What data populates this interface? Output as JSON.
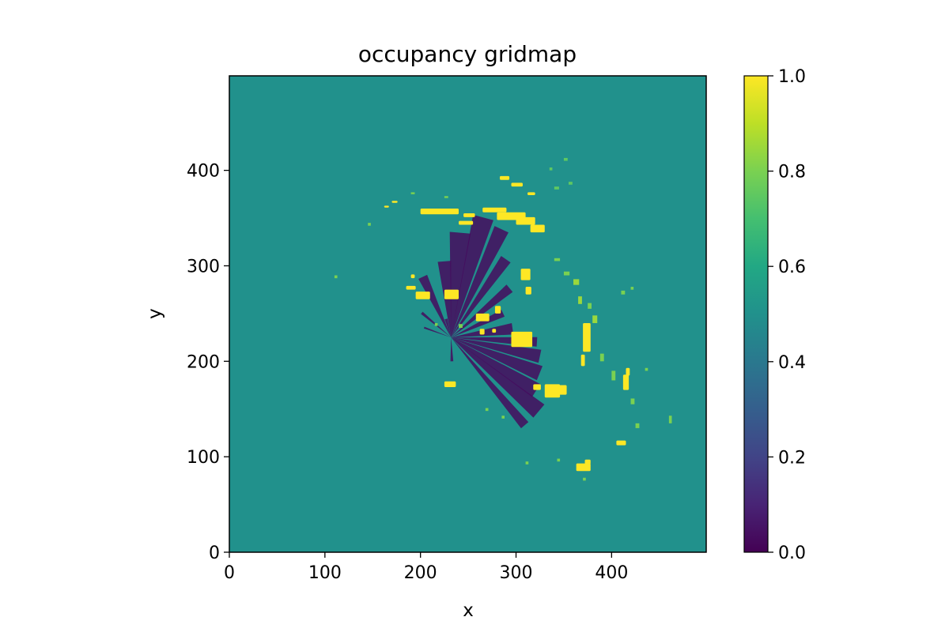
{
  "chart_data": {
    "type": "heatmap",
    "title": "occupancy gridmap",
    "xlabel": "x",
    "ylabel": "y",
    "xlim": [
      0,
      499
    ],
    "ylim": [
      0,
      499
    ],
    "x_ticks": [
      "0",
      "100",
      "200",
      "300",
      "400"
    ],
    "y_ticks": [
      "0",
      "100",
      "200",
      "300",
      "400"
    ],
    "colorbar": {
      "colormap": "viridis",
      "vmin": 0.0,
      "vmax": 1.0,
      "ticks": [
        "0.0",
        "0.2",
        "0.4",
        "0.6",
        "0.8",
        "1.0"
      ]
    },
    "background_value": 0.5,
    "sensor_origin": [
      232,
      225
    ],
    "free_space_rays": [
      {
        "angle_deg": 105,
        "length": 20,
        "width": 3
      },
      {
        "angle_deg": 115,
        "length": 70,
        "width": 10
      },
      {
        "angle_deg": 95,
        "length": 80,
        "width": 14
      },
      {
        "angle_deg": 85,
        "length": 110,
        "width": 22
      },
      {
        "angle_deg": 75,
        "length": 130,
        "width": 22
      },
      {
        "angle_deg": 65,
        "length": 125,
        "width": 16
      },
      {
        "angle_deg": 55,
        "length": 100,
        "width": 12
      },
      {
        "angle_deg": 40,
        "length": 80,
        "width": 10
      },
      {
        "angle_deg": 25,
        "length": 60,
        "width": 8
      },
      {
        "angle_deg": 8,
        "length": 65,
        "width": 12
      },
      {
        "angle_deg": -3,
        "length": 90,
        "width": 10
      },
      {
        "angle_deg": -12,
        "length": 95,
        "width": 14
      },
      {
        "angle_deg": -22,
        "length": 100,
        "width": 16
      },
      {
        "angle_deg": -32,
        "length": 105,
        "width": 16
      },
      {
        "angle_deg": -40,
        "length": 120,
        "width": 18
      },
      {
        "angle_deg": -50,
        "length": 120,
        "width": 10
      },
      {
        "angle_deg": -88,
        "length": 25,
        "width": 3
      },
      {
        "angle_deg": 140,
        "length": 40,
        "width": 3
      },
      {
        "angle_deg": 160,
        "length": 30,
        "width": 2
      }
    ],
    "occupied_cells": [
      {
        "x": 200,
        "y": 354,
        "w": 40,
        "h": 6
      },
      {
        "x": 245,
        "y": 351,
        "w": 12,
        "h": 4
      },
      {
        "x": 265,
        "y": 356,
        "w": 25,
        "h": 5
      },
      {
        "x": 280,
        "y": 348,
        "w": 30,
        "h": 8
      },
      {
        "x": 300,
        "y": 343,
        "w": 20,
        "h": 8
      },
      {
        "x": 315,
        "y": 335,
        "w": 15,
        "h": 8
      },
      {
        "x": 240,
        "y": 343,
        "w": 15,
        "h": 4
      },
      {
        "x": 170,
        "y": 366,
        "w": 6,
        "h": 2
      },
      {
        "x": 162,
        "y": 361,
        "w": 5,
        "h": 2
      },
      {
        "x": 283,
        "y": 390,
        "w": 10,
        "h": 4
      },
      {
        "x": 295,
        "y": 383,
        "w": 12,
        "h": 4
      },
      {
        "x": 312,
        "y": 374,
        "w": 8,
        "h": 3
      },
      {
        "x": 185,
        "y": 275,
        "w": 10,
        "h": 4
      },
      {
        "x": 195,
        "y": 265,
        "w": 15,
        "h": 8
      },
      {
        "x": 225,
        "y": 265,
        "w": 15,
        "h": 10
      },
      {
        "x": 190,
        "y": 287,
        "w": 4,
        "h": 4
      },
      {
        "x": 258,
        "y": 242,
        "w": 14,
        "h": 8
      },
      {
        "x": 278,
        "y": 250,
        "w": 6,
        "h": 8
      },
      {
        "x": 262,
        "y": 228,
        "w": 5,
        "h": 6
      },
      {
        "x": 275,
        "y": 230,
        "w": 4,
        "h": 4
      },
      {
        "x": 295,
        "y": 215,
        "w": 22,
        "h": 16
      },
      {
        "x": 310,
        "y": 225,
        "w": 5,
        "h": 4
      },
      {
        "x": 305,
        "y": 285,
        "w": 10,
        "h": 12
      },
      {
        "x": 310,
        "y": 270,
        "w": 6,
        "h": 8
      },
      {
        "x": 370,
        "y": 210,
        "w": 8,
        "h": 30
      },
      {
        "x": 368,
        "y": 195,
        "w": 4,
        "h": 12
      },
      {
        "x": 330,
        "y": 162,
        "w": 16,
        "h": 14
      },
      {
        "x": 345,
        "y": 165,
        "w": 8,
        "h": 10
      },
      {
        "x": 318,
        "y": 170,
        "w": 8,
        "h": 6
      },
      {
        "x": 225,
        "y": 173,
        "w": 12,
        "h": 6
      },
      {
        "x": 363,
        "y": 85,
        "w": 15,
        "h": 8
      },
      {
        "x": 372,
        "y": 92,
        "w": 6,
        "h": 5
      },
      {
        "x": 405,
        "y": 112,
        "w": 10,
        "h": 5
      },
      {
        "x": 412,
        "y": 170,
        "w": 6,
        "h": 16
      },
      {
        "x": 415,
        "y": 185,
        "w": 4,
        "h": 8
      }
    ],
    "partial_cells": [
      {
        "x": 340,
        "y": 305,
        "w": 6,
        "h": 3,
        "v": 0.8
      },
      {
        "x": 350,
        "y": 290,
        "w": 6,
        "h": 4,
        "v": 0.8
      },
      {
        "x": 360,
        "y": 280,
        "w": 6,
        "h": 6,
        "v": 0.85
      },
      {
        "x": 365,
        "y": 260,
        "w": 4,
        "h": 8,
        "v": 0.85
      },
      {
        "x": 375,
        "y": 255,
        "w": 4,
        "h": 6,
        "v": 0.8
      },
      {
        "x": 380,
        "y": 240,
        "w": 5,
        "h": 8,
        "v": 0.85
      },
      {
        "x": 388,
        "y": 200,
        "w": 4,
        "h": 8,
        "v": 0.8
      },
      {
        "x": 400,
        "y": 180,
        "w": 4,
        "h": 10,
        "v": 0.8
      },
      {
        "x": 420,
        "y": 155,
        "w": 4,
        "h": 6,
        "v": 0.8
      },
      {
        "x": 425,
        "y": 130,
        "w": 4,
        "h": 5,
        "v": 0.8
      },
      {
        "x": 410,
        "y": 270,
        "w": 4,
        "h": 4,
        "v": 0.8
      },
      {
        "x": 340,
        "y": 380,
        "w": 5,
        "h": 3,
        "v": 0.75
      },
      {
        "x": 355,
        "y": 385,
        "w": 4,
        "h": 3,
        "v": 0.75
      },
      {
        "x": 335,
        "y": 400,
        "w": 3,
        "h": 3,
        "v": 0.75
      },
      {
        "x": 350,
        "y": 410,
        "w": 4,
        "h": 3,
        "v": 0.75
      },
      {
        "x": 190,
        "y": 375,
        "w": 4,
        "h": 2,
        "v": 0.8
      },
      {
        "x": 225,
        "y": 371,
        "w": 4,
        "h": 2,
        "v": 0.8
      },
      {
        "x": 110,
        "y": 287,
        "w": 3,
        "h": 3,
        "v": 0.8
      },
      {
        "x": 145,
        "y": 342,
        "w": 3,
        "h": 3,
        "v": 0.8
      },
      {
        "x": 240,
        "y": 235,
        "w": 4,
        "h": 4,
        "v": 0.8
      },
      {
        "x": 215,
        "y": 237,
        "w": 3,
        "h": 3,
        "v": 0.8
      },
      {
        "x": 285,
        "y": 140,
        "w": 3,
        "h": 3,
        "v": 0.8
      },
      {
        "x": 268,
        "y": 148,
        "w": 3,
        "h": 3,
        "v": 0.8
      },
      {
        "x": 310,
        "y": 92,
        "w": 3,
        "h": 3,
        "v": 0.8
      },
      {
        "x": 343,
        "y": 95,
        "w": 3,
        "h": 3,
        "v": 0.8
      },
      {
        "x": 370,
        "y": 75,
        "w": 3,
        "h": 3,
        "v": 0.8
      },
      {
        "x": 460,
        "y": 135,
        "w": 3,
        "h": 8,
        "v": 0.8
      },
      {
        "x": 435,
        "y": 190,
        "w": 3,
        "h": 3,
        "v": 0.8
      },
      {
        "x": 420,
        "y": 275,
        "w": 3,
        "h": 3,
        "v": 0.8
      }
    ]
  }
}
